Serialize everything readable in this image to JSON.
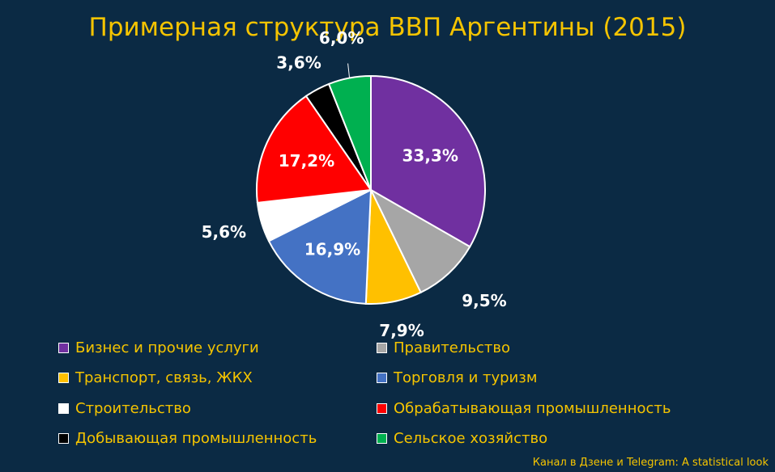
{
  "chart_data": {
    "type": "pie",
    "title": "Примерная структура ВВП Аргентины (2015)",
    "slices": [
      {
        "name": "Бизнес и прочие услуги",
        "value": 33.3,
        "label": "33,3%",
        "color": "#7030a0"
      },
      {
        "name": "Правительство",
        "value": 9.5,
        "label": "9,5%",
        "color": "#a6a6a6"
      },
      {
        "name": "Транспорт, связь, ЖКХ",
        "value": 7.9,
        "label": "7,9%",
        "color": "#ffc000"
      },
      {
        "name": "Торговля и туризм",
        "value": 16.9,
        "label": "16,9%",
        "color": "#4472c4"
      },
      {
        "name": "Строительство",
        "value": 5.6,
        "label": "5,6%",
        "color": "#ffffff"
      },
      {
        "name": "Обрабатывающая промышленность",
        "value": 17.2,
        "label": "17,2%",
        "color": "#ff0000"
      },
      {
        "name": "Добывающая промышленность",
        "value": 3.6,
        "label": "3,6%",
        "color": "#000000"
      },
      {
        "name": "Сельское хозяйство",
        "value": 6.0,
        "label": "6,0%",
        "color": "#00b050"
      }
    ],
    "legend_position": "bottom"
  },
  "credit": "Канал в Дзене и Telegram: A statistical look",
  "colors": {
    "background": "#0b2a44",
    "text_accent": "#f5c400"
  }
}
